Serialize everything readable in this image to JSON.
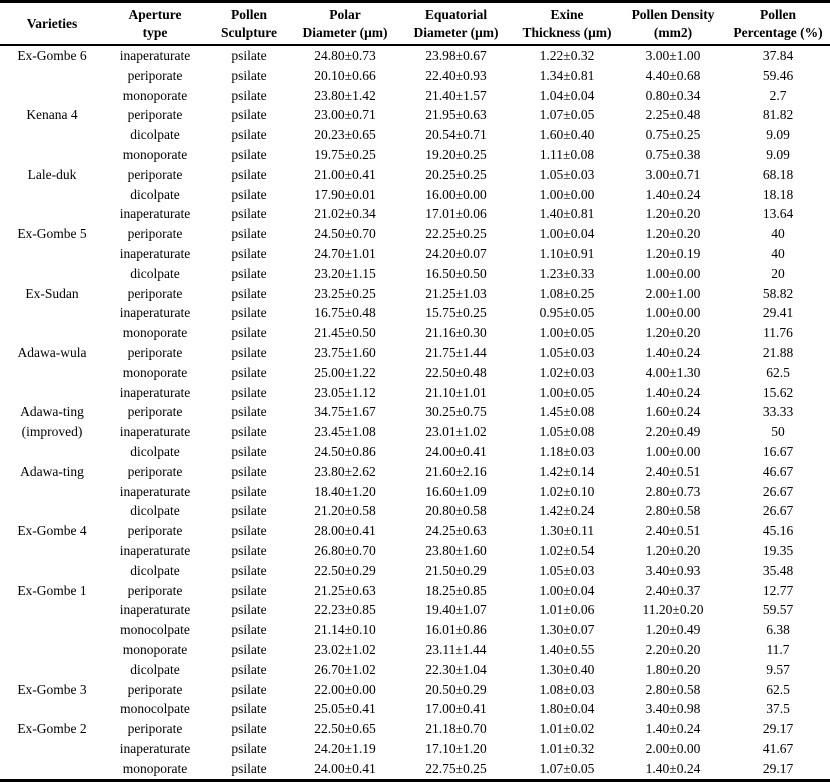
{
  "table": {
    "columns": [
      {
        "id": "varieties",
        "line1": "Varieties",
        "line2": ""
      },
      {
        "id": "aperture-type",
        "line1": "Aperture",
        "line2": "type"
      },
      {
        "id": "pollen-sculpture",
        "line1": "Pollen",
        "line2": "Sculpture"
      },
      {
        "id": "polar-diameter",
        "line1": "Polar",
        "line2": "Diameter (μm)"
      },
      {
        "id": "equatorial-diameter",
        "line1": "Equatorial",
        "line2": "Diameter (μm)"
      },
      {
        "id": "exine-thickness",
        "line1": "Exine",
        "line2": "Thickness (μm)"
      },
      {
        "id": "pollen-density",
        "line1": "Pollen Density",
        "line2": "(mm2)"
      },
      {
        "id": "pollen-percentage",
        "line1": "Pollen",
        "line2": "Percentage (%)"
      }
    ],
    "rows": [
      [
        "Ex-Gombe 6",
        "inaperaturate",
        "psilate",
        "24.80±0.73",
        "23.98±0.67",
        "1.22±0.32",
        "3.00±1.00",
        "37.84"
      ],
      [
        "",
        "periporate",
        "psilate",
        "20.10±0.66",
        "22.40±0.93",
        "1.34±0.81",
        "4.40±0.68",
        "59.46"
      ],
      [
        "",
        "monoporate",
        "psilate",
        "23.80±1.42",
        "21.40±1.57",
        "1.04±0.04",
        "0.80±0.34",
        "2.7"
      ],
      [
        "Kenana 4",
        "periporate",
        "psilate",
        "23.00±0.71",
        "21.95±0.63",
        "1.07±0.05",
        "2.25±0.48",
        "81.82"
      ],
      [
        "",
        "dicolpate",
        "psilate",
        "20.23±0.65",
        "20.54±0.71",
        "1.60±0.40",
        "0.75±0.25",
        "9.09"
      ],
      [
        "",
        "monoporate",
        "psilate",
        "19.75±0.25",
        "19.20±0.25",
        "1.11±0.08",
        "0.75±0.38",
        "9.09"
      ],
      [
        "Lale-duk",
        "periporate",
        "psilate",
        "21.00±0.41",
        "20.25±0.25",
        "1.05±0.03",
        "3.00±0.71",
        "68.18"
      ],
      [
        "",
        "dicolpate",
        "psilate",
        "17.90±0.01",
        "16.00±0.00",
        "1.00±0.00",
        "1.40±0.24",
        "18.18"
      ],
      [
        "",
        "inaperaturate",
        "psilate",
        "21.02±0.34",
        "17.01±0.06",
        "1.40±0.81",
        "1.20±0.20",
        "13.64"
      ],
      [
        "Ex-Gombe 5",
        "periporate",
        "psilate",
        "24.50±0.70",
        "22.25±0.25",
        "1.00±0.04",
        "1.20±0.20",
        "40"
      ],
      [
        "",
        "inaperaturate",
        "psilate",
        "24.70±1.01",
        "24.20±0.07",
        "1.10±0.91",
        "1.20±0.19",
        "40"
      ],
      [
        "",
        "dicolpate",
        "psilate",
        "23.20±1.15",
        "16.50±0.50",
        "1.23±0.33",
        "1.00±0.00",
        "20"
      ],
      [
        "Ex-Sudan",
        "periporate",
        "psilate",
        "23.25±0.25",
        "21.25±1.03",
        "1.08±0.25",
        "2.00±1.00",
        "58.82"
      ],
      [
        "",
        "inaperaturate",
        "psilate",
        "16.75±0.48",
        "15.75±0.25",
        "0.95±0.05",
        "1.00±0.00",
        "29.41"
      ],
      [
        "",
        "monoporate",
        "psilate",
        "21.45±0.50",
        "21.16±0.30",
        "1.00±0.05",
        "1.20±0.20",
        "11.76"
      ],
      [
        "Adawa-wula",
        "periporate",
        "psilate",
        "23.75±1.60",
        "21.75±1.44",
        "1.05±0.03",
        "1.40±0.24",
        "21.88"
      ],
      [
        "",
        "monoporate",
        "psilate",
        "25.00±1.22",
        "22.50±0.48",
        "1.02±0.03",
        "4.00±1.30",
        "62.5"
      ],
      [
        "",
        "inaperaturate",
        "psilate",
        "23.05±1.12",
        "21.10±1.01",
        "1.00±0.05",
        "1.40±0.24",
        "15.62"
      ],
      [
        "Adawa-ting",
        "periporate",
        "psilate",
        "34.75±1.67",
        "30.25±0.75",
        "1.45±0.08",
        "1.60±0.24",
        "33.33"
      ],
      [
        "(improved)",
        "inaperaturate",
        "psilate",
        "23.45±1.08",
        "23.01±1.02",
        "1.05±0.08",
        "2.20±0.49",
        "50"
      ],
      [
        "",
        "dicolpate",
        "psilate",
        "24.50±0.86",
        "24.00±0.41",
        "1.18±0.03",
        "1.00±0.00",
        "16.67"
      ],
      [
        "Adawa-ting",
        "periporate",
        "psilate",
        "23.80±2.62",
        "21.60±2.16",
        "1.42±0.14",
        "2.40±0.51",
        "46.67"
      ],
      [
        "",
        "inaperaturate",
        "psilate",
        "18.40±1.20",
        "16.60±1.09",
        "1.02±0.10",
        "2.80±0.73",
        "26.67"
      ],
      [
        "",
        "dicolpate",
        "psilate",
        "21.20±0.58",
        "20.80±0.58",
        "1.42±0.24",
        "2.80±0.58",
        "26.67"
      ],
      [
        "Ex-Gombe 4",
        "periporate",
        "psilate",
        "28.00±0.41",
        "24.25±0.63",
        "1.30±0.11",
        "2.40±0.51",
        "45.16"
      ],
      [
        "",
        "inaperaturate",
        "psilate",
        "26.80±0.70",
        "23.80±1.60",
        "1.02±0.54",
        "1.20±0.20",
        "19.35"
      ],
      [
        "",
        "dicolpate",
        "psilate",
        "22.50±0.29",
        "21.50±0.29",
        "1.05±0.03",
        "3.40±0.93",
        "35.48"
      ],
      [
        "Ex-Gombe 1",
        "periporate",
        "psilate",
        "21.25±0.63",
        "18.25±0.85",
        "1.00±0.04",
        "2.40±0.37",
        "12.77"
      ],
      [
        "",
        "inaperaturate",
        "psilate",
        "22.23±0.85",
        "19.40±1.07",
        "1.01±0.06",
        "11.20±0.20",
        "59.57"
      ],
      [
        "",
        "monocolpate",
        "psilate",
        "21.14±0.10",
        "16.01±0.86",
        "1.30±0.07",
        "1.20±0.49",
        "6.38"
      ],
      [
        "",
        "monoporate",
        "psilate",
        "23.02±1.02",
        "23.11±1.44",
        "1.40±0.55",
        "2.20±0.20",
        "11.7"
      ],
      [
        "",
        "dicolpate",
        "psilate",
        "26.70±1.02",
        "22.30±1.04",
        "1.30±0.40",
        "1.80±0.20",
        "9.57"
      ],
      [
        "Ex-Gombe 3",
        "periporate",
        "psilate",
        "22.00±0.00",
        "20.50±0.29",
        "1.08±0.03",
        "2.80±0.58",
        "62.5"
      ],
      [
        "",
        "monocolpate",
        "psilate",
        "25.05±0.41",
        "17.00±0.41",
        "1.80±0.04",
        "3.40±0.98",
        "37.5"
      ],
      [
        "Ex-Gombe 2",
        "periporate",
        "psilate",
        "22.50±0.65",
        "21.18±0.70",
        "1.01±0.02",
        "1.40±0.24",
        "29.17"
      ],
      [
        "",
        "inaperaturate",
        "psilate",
        "24.20±1.19",
        "17.10±1.20",
        "1.01±0.32",
        "2.00±0.00",
        "41.67"
      ],
      [
        "",
        "monoporate",
        "psilate",
        "24.00±0.41",
        "22.75±0.25",
        "1.07±0.05",
        "1.40±0.24",
        "29.17"
      ]
    ]
  }
}
